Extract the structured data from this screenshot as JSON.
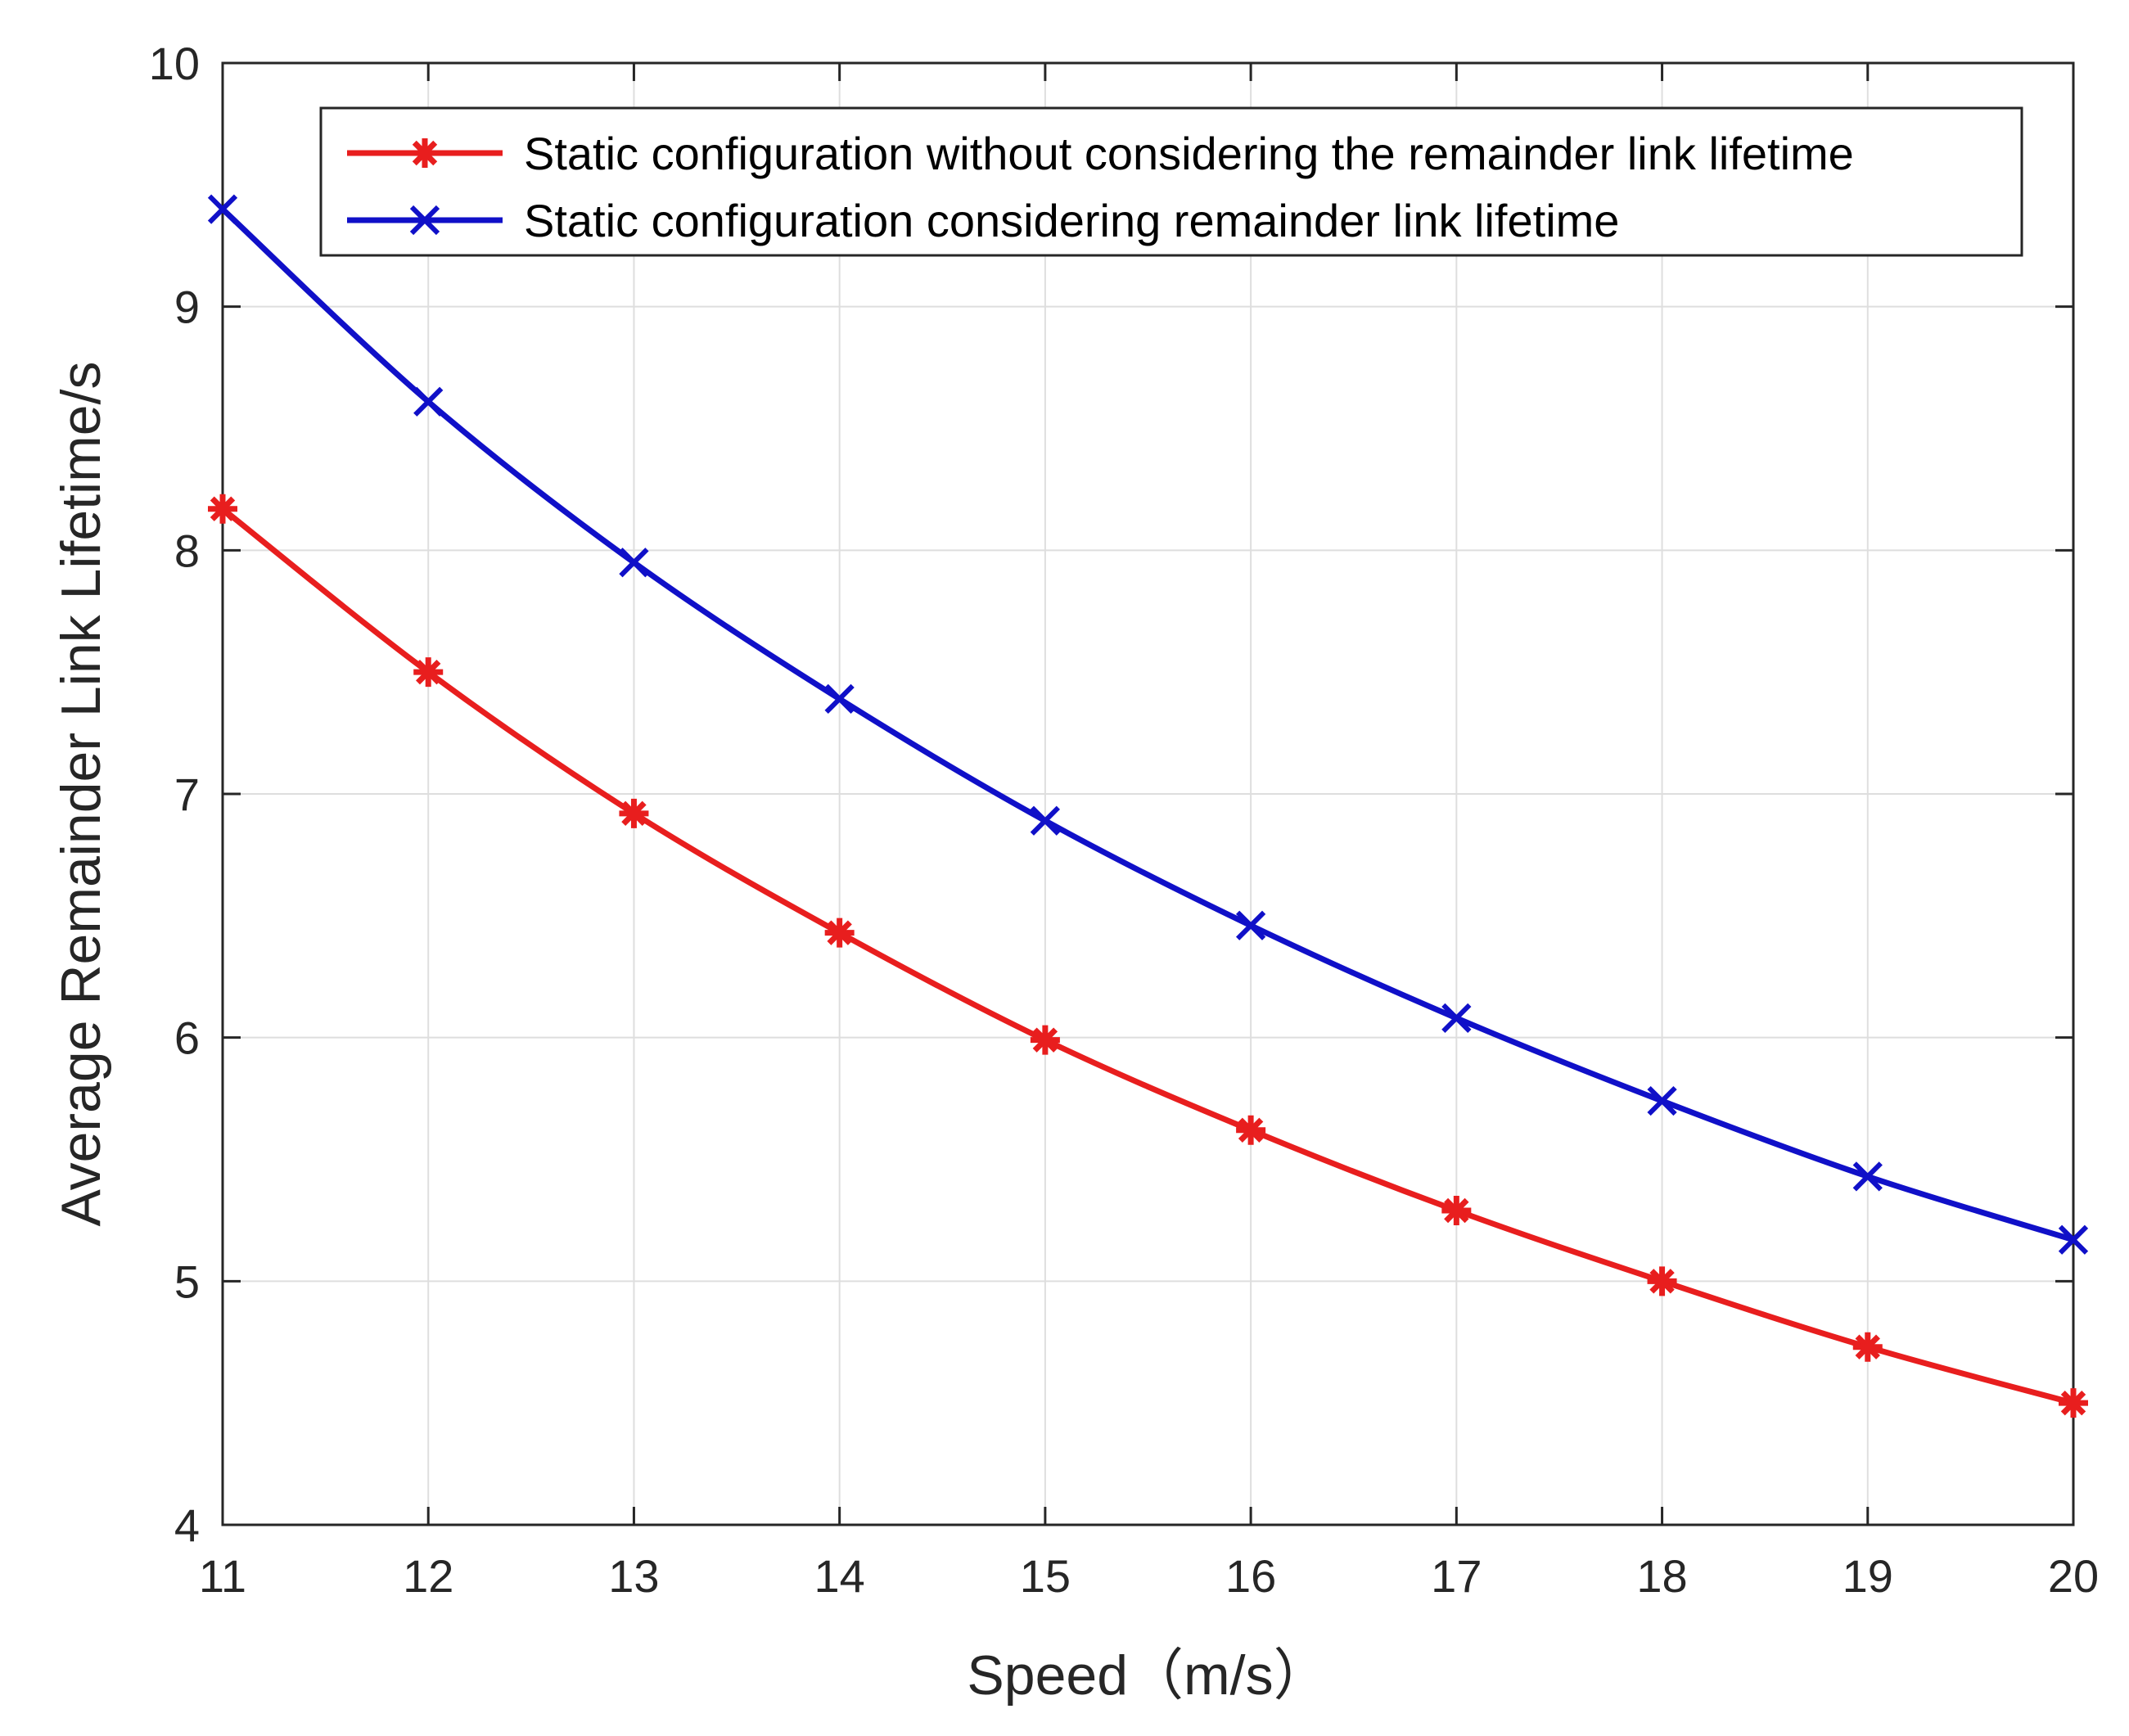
{
  "chart_data": {
    "type": "line",
    "title": "",
    "xlabel": "Speed（m/s）",
    "ylabel": "Average Remainder Link Lifetime/s",
    "xlim": [
      11,
      20
    ],
    "ylim": [
      4,
      10
    ],
    "xticks": [
      "11",
      "12",
      "13",
      "14",
      "15",
      "16",
      "17",
      "18",
      "19",
      "20"
    ],
    "yticks": [
      "4",
      "5",
      "6",
      "7",
      "8",
      "9",
      "10"
    ],
    "grid": true,
    "legend_position": "top-right",
    "x": [
      11,
      12,
      13,
      14,
      15,
      16,
      17,
      18,
      19,
      20
    ],
    "series": [
      {
        "name": "Static configuration without considering the remainder link lifetime",
        "color": "#e81e1e",
        "marker": "asterisk",
        "values": [
          8.17,
          7.5,
          6.92,
          6.43,
          5.99,
          5.62,
          5.29,
          5.0,
          4.73,
          4.5
        ]
      },
      {
        "name": "Static configuration considering remainder link lifetime",
        "color": "#1010c8",
        "marker": "x",
        "values": [
          9.4,
          8.61,
          7.95,
          7.39,
          6.89,
          6.46,
          6.08,
          5.74,
          5.43,
          5.17
        ]
      }
    ]
  }
}
